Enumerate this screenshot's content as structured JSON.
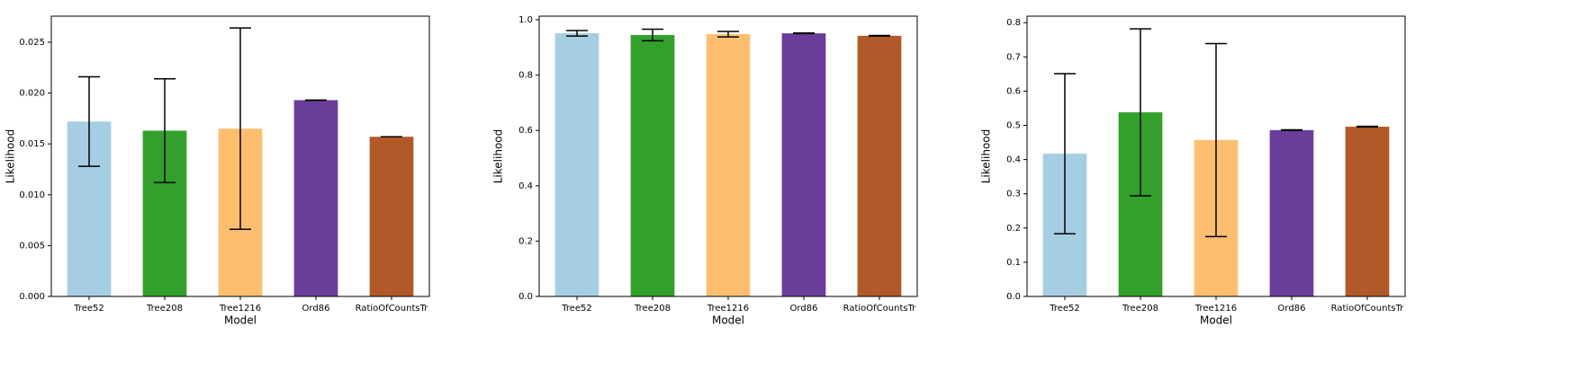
{
  "chart_data": [
    {
      "type": "bar",
      "xlabel": "Model",
      "ylabel": "Likelihood",
      "categories": [
        "Tree52",
        "Tree208",
        "Tree1216",
        "Ord86",
        "RatioOfCountsTr"
      ],
      "values": [
        0.0172,
        0.0163,
        0.0165,
        0.0193,
        0.0157
      ],
      "errors": [
        0.0044,
        0.0051,
        0.0099,
        0,
        0
      ],
      "colors": [
        "#a6cee3",
        "#33a02c",
        "#fdbf6f",
        "#6a3d9a",
        "#b15928"
      ],
      "ylim": [
        0,
        0.02756
      ],
      "yticks": [
        {
          "value": 0,
          "label": "0.000"
        },
        {
          "value": 0.005,
          "label": "0.005"
        },
        {
          "value": 0.01,
          "label": "0.010"
        },
        {
          "value": 0.015,
          "label": "0.015"
        },
        {
          "value": 0.02,
          "label": "0.020"
        },
        {
          "value": 0.025,
          "label": "0.025"
        }
      ]
    },
    {
      "type": "bar",
      "xlabel": "Model",
      "ylabel": "Likelihood",
      "categories": [
        "Tree52",
        "Tree208",
        "Tree1216",
        "Ord86",
        "RatioOfCountsTr"
      ],
      "values": [
        0.951,
        0.945,
        0.948,
        0.951,
        0.942
      ],
      "errors": [
        0.01,
        0.021,
        0.01,
        0.001,
        0.001
      ],
      "colors": [
        "#a6cee3",
        "#33a02c",
        "#fdbf6f",
        "#6a3d9a",
        "#b15928"
      ],
      "ylim": [
        0,
        1.013
      ],
      "yticks": [
        {
          "value": 0,
          "label": "0.0"
        },
        {
          "value": 0.2,
          "label": "0.2"
        },
        {
          "value": 0.4,
          "label": "0.4"
        },
        {
          "value": 0.6,
          "label": "0.6"
        },
        {
          "value": 0.8,
          "label": "0.8"
        },
        {
          "value": 1,
          "label": "1.0"
        }
      ]
    },
    {
      "type": "bar",
      "xlabel": "Model",
      "ylabel": "Likelihood",
      "categories": [
        "Tree52",
        "Tree208",
        "Tree1216",
        "Ord86",
        "RatioOfCountsTr"
      ],
      "values": [
        0.417,
        0.538,
        0.457,
        0.486,
        0.496
      ],
      "errors": [
        0.234,
        0.244,
        0.282,
        0.001,
        0.001
      ],
      "colors": [
        "#a6cee3",
        "#33a02c",
        "#fdbf6f",
        "#6a3d9a",
        "#b15928"
      ],
      "ylim": [
        0,
        0.819
      ],
      "yticks": [
        {
          "value": 0,
          "label": "0.0"
        },
        {
          "value": 0.1,
          "label": "0.1"
        },
        {
          "value": 0.2,
          "label": "0.2"
        },
        {
          "value": 0.3,
          "label": "0.3"
        },
        {
          "value": 0.4,
          "label": "0.4"
        },
        {
          "value": 0.5,
          "label": "0.5"
        },
        {
          "value": 0.6,
          "label": "0.6"
        },
        {
          "value": 0.7,
          "label": "0.7"
        },
        {
          "value": 0.8,
          "label": "0.8"
        }
      ]
    }
  ]
}
